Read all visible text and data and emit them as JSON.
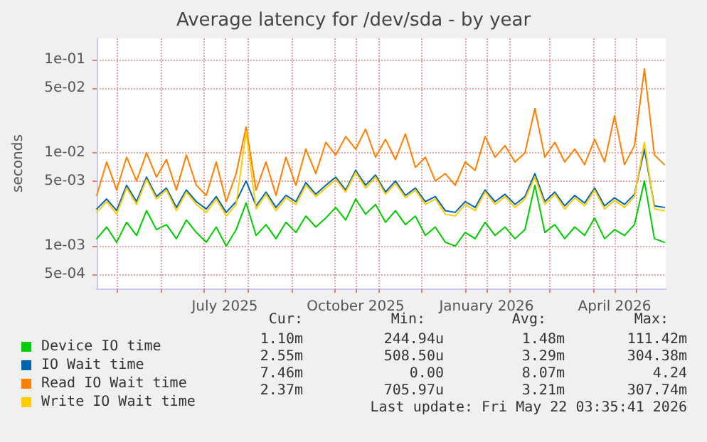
{
  "chart_data": {
    "type": "line",
    "title": "Average latency for /dev/sda - by year",
    "ylabel": "seconds",
    "log": "y",
    "grid": true,
    "legend": "bottom left",
    "marker": "none",
    "line_style": "solid",
    "xlim": [
      "2025-04-17",
      "2026-05-22"
    ],
    "xticks": [
      {
        "value": "2025-05-01",
        "label": null
      },
      {
        "value": "2025-06-01",
        "label": null
      },
      {
        "value": "2025-07-01",
        "label": null
      },
      {
        "value": "2025-07-16",
        "label": "July 2025"
      },
      {
        "value": "2025-08-01",
        "label": null
      },
      {
        "value": "2025-09-01",
        "label": null
      },
      {
        "value": "2025-10-01",
        "label": null
      },
      {
        "value": "2025-10-16",
        "label": "October 2025"
      },
      {
        "value": "2025-11-01",
        "label": null
      },
      {
        "value": "2025-12-01",
        "label": null
      },
      {
        "value": "2026-01-01",
        "label": null
      },
      {
        "value": "2026-01-16",
        "label": "January 2026"
      },
      {
        "value": "2026-02-01",
        "label": null
      },
      {
        "value": "2026-03-01",
        "label": null
      },
      {
        "value": "2026-04-01",
        "label": null
      },
      {
        "value": "2026-04-16",
        "label": "April 2026"
      },
      {
        "value": "2026-05-01",
        "label": null
      }
    ],
    "ylim": [
      0.00035,
      0.17
    ],
    "yticks": [
      {
        "value": 0.0005,
        "label": "5e-04"
      },
      {
        "value": 0.001,
        "label": "1e-03"
      },
      {
        "value": 0.005,
        "label": "5e-03"
      },
      {
        "value": 0.01,
        "label": "1e-02"
      },
      {
        "value": 0.05,
        "label": "5e-02"
      },
      {
        "value": 0.1,
        "label": "1e-01"
      }
    ],
    "x": [
      "2025-04-17",
      "2025-04-24",
      "2025-05-01",
      "2025-05-08",
      "2025-05-15",
      "2025-05-22",
      "2025-05-29",
      "2025-06-05",
      "2025-06-12",
      "2025-06-19",
      "2025-06-26",
      "2025-07-03",
      "2025-07-10",
      "2025-07-17",
      "2025-07-24",
      "2025-07-31",
      "2025-08-07",
      "2025-08-14",
      "2025-08-21",
      "2025-08-28",
      "2025-09-04",
      "2025-09-11",
      "2025-09-18",
      "2025-09-25",
      "2025-10-02",
      "2025-10-09",
      "2025-10-16",
      "2025-10-23",
      "2025-10-30",
      "2025-11-06",
      "2025-11-13",
      "2025-11-20",
      "2025-11-27",
      "2025-12-04",
      "2025-12-11",
      "2025-12-18",
      "2025-12-25",
      "2026-01-01",
      "2026-01-08",
      "2026-01-15",
      "2026-01-22",
      "2026-01-29",
      "2026-02-05",
      "2026-02-12",
      "2026-02-19",
      "2026-02-26",
      "2026-03-05",
      "2026-03-12",
      "2026-03-19",
      "2026-03-26",
      "2026-04-02",
      "2026-04-09",
      "2026-04-16",
      "2026-04-23",
      "2026-04-30",
      "2026-05-07",
      "2026-05-14",
      "2026-05-21"
    ],
    "series": [
      {
        "name": "Device IO time",
        "color": "#00cc00",
        "values": [
          0.0012,
          0.0016,
          0.0011,
          0.0018,
          0.0013,
          0.0024,
          0.0015,
          0.0017,
          0.0012,
          0.0019,
          0.0014,
          0.0011,
          0.0016,
          0.001,
          0.0015,
          0.0029,
          0.0013,
          0.0017,
          0.0012,
          0.0018,
          0.0014,
          0.0021,
          0.0016,
          0.002,
          0.0026,
          0.0019,
          0.0032,
          0.0022,
          0.0028,
          0.0018,
          0.0024,
          0.0017,
          0.0021,
          0.0013,
          0.0016,
          0.0011,
          0.001,
          0.0014,
          0.0012,
          0.0018,
          0.0013,
          0.0016,
          0.0012,
          0.0015,
          0.0045,
          0.0014,
          0.0017,
          0.0012,
          0.0016,
          0.0013,
          0.002,
          0.0012,
          0.0015,
          0.0013,
          0.0017,
          0.005,
          0.0012,
          0.0011
        ]
      },
      {
        "name": "IO Wait time",
        "color": "#0066b3",
        "values": [
          0.0025,
          0.0032,
          0.0024,
          0.0045,
          0.003,
          0.0055,
          0.0034,
          0.0042,
          0.0026,
          0.004,
          0.003,
          0.0025,
          0.0034,
          0.0023,
          0.003,
          0.005,
          0.0027,
          0.0038,
          0.0026,
          0.0035,
          0.003,
          0.0048,
          0.0036,
          0.0045,
          0.0055,
          0.004,
          0.0065,
          0.0045,
          0.0058,
          0.0038,
          0.005,
          0.0035,
          0.0042,
          0.003,
          0.0034,
          0.0024,
          0.0023,
          0.003,
          0.0026,
          0.004,
          0.003,
          0.0036,
          0.0028,
          0.0034,
          0.006,
          0.003,
          0.0038,
          0.0027,
          0.0035,
          0.0029,
          0.0042,
          0.0027,
          0.0033,
          0.0028,
          0.0036,
          0.011,
          0.0027,
          0.0026
        ]
      },
      {
        "name": "Read IO Wait time",
        "color": "#ff8000",
        "values": [
          0.0035,
          0.008,
          0.004,
          0.009,
          0.005,
          0.01,
          0.0055,
          0.0085,
          0.004,
          0.0095,
          0.0045,
          0.0035,
          0.008,
          0.003,
          0.006,
          0.019,
          0.004,
          0.008,
          0.0035,
          0.009,
          0.0045,
          0.011,
          0.006,
          0.013,
          0.0095,
          0.015,
          0.011,
          0.018,
          0.009,
          0.014,
          0.0085,
          0.016,
          0.007,
          0.009,
          0.005,
          0.006,
          0.0045,
          0.008,
          0.0065,
          0.015,
          0.009,
          0.012,
          0.008,
          0.01,
          0.03,
          0.009,
          0.013,
          0.008,
          0.011,
          0.0075,
          0.014,
          0.008,
          0.025,
          0.0075,
          0.012,
          0.08,
          0.0095,
          0.0075
        ]
      },
      {
        "name": "Write IO Wait time",
        "color": "#ffcc00",
        "values": [
          0.0023,
          0.003,
          0.0022,
          0.0042,
          0.0028,
          0.0052,
          0.0032,
          0.004,
          0.0024,
          0.0038,
          0.0028,
          0.0023,
          0.0032,
          0.0021,
          0.0028,
          0.017,
          0.0025,
          0.0036,
          0.0024,
          0.0033,
          0.0028,
          0.0045,
          0.0034,
          0.0042,
          0.0052,
          0.0038,
          0.0062,
          0.0042,
          0.0055,
          0.0036,
          0.0047,
          0.0033,
          0.004,
          0.0028,
          0.0032,
          0.0022,
          0.0021,
          0.0028,
          0.0024,
          0.0038,
          0.0028,
          0.0034,
          0.0026,
          0.0032,
          0.0055,
          0.0028,
          0.0036,
          0.0025,
          0.0033,
          0.0027,
          0.004,
          0.0025,
          0.0031,
          0.0026,
          0.0034,
          0.013,
          0.0025,
          0.0024
        ]
      }
    ],
    "annotations": [
      "Cur:",
      "Min:",
      "Avg:",
      "Max:",
      "1.10m",
      "244.94u",
      "1.48m",
      "111.42m",
      "2.55m",
      "508.50u",
      "3.29m",
      "304.38m",
      "7.46m",
      "0.00",
      "8.07m",
      "4.24",
      "2.37m",
      "705.97u",
      "3.21m",
      "307.74m",
      "Last update: Fri May 22 03:35:41 2026"
    ]
  }
}
